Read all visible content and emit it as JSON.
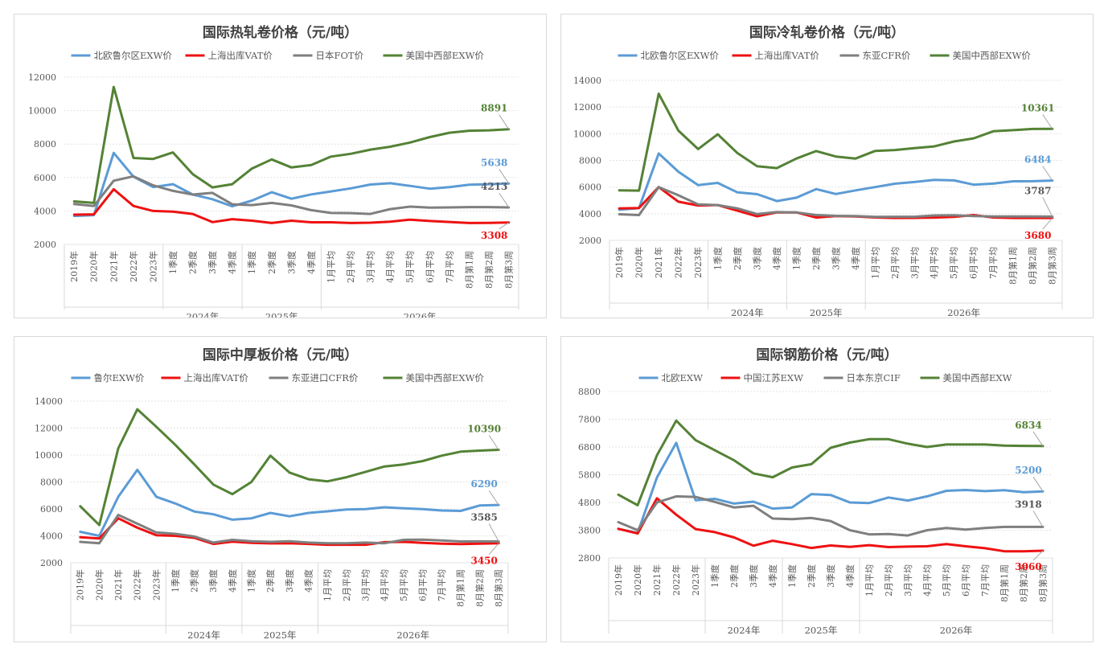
{
  "colors": {
    "blue": "#5b9bd5",
    "red": "#ee1111",
    "gray": "#7f7f7f",
    "green": "#548235"
  },
  "chart_data": [
    {
      "type": "line",
      "title": "国际热轧卷价格（元/吨）",
      "categories": [
        "2019年",
        "2020年",
        "2021年",
        "2022年",
        "2023年",
        "1季度",
        "2季度",
        "3季度",
        "4季度",
        "1季度",
        "2季度",
        "3季度",
        "4季度",
        "1月平均",
        "2月平均",
        "3月平均",
        "4月平均",
        "5月平均",
        "6月平均",
        "7月平均",
        "8月第1周",
        "8月第2周",
        "8月第3周"
      ],
      "groups": [
        {
          "label": "2024年",
          "start": 5,
          "end": 8
        },
        {
          "label": "2025年",
          "start": 9,
          "end": 12
        },
        {
          "label": "2026年",
          "start": 13,
          "end": 22
        }
      ],
      "ylim": [
        2000,
        12000
      ],
      "yticks": [
        2000,
        4000,
        6000,
        8000,
        10000,
        12000
      ],
      "legend_position": "top",
      "series": [
        {
          "name": "北欧鲁尔区EXW价",
          "color": "#5b9bd5",
          "values": [
            3700,
            3750,
            7470,
            6050,
            5430,
            5600,
            4980,
            4700,
            4280,
            4620,
            5120,
            4730,
            4990,
            5170,
            5350,
            5580,
            5660,
            5500,
            5330,
            5430,
            5570,
            5600,
            5638
          ],
          "end_label": "5638"
        },
        {
          "name": "上海出库VAT价",
          "color": "#ee1111",
          "values": [
            3780,
            3800,
            5300,
            4300,
            4000,
            3960,
            3820,
            3330,
            3510,
            3420,
            3280,
            3420,
            3320,
            3320,
            3280,
            3300,
            3360,
            3480,
            3400,
            3340,
            3280,
            3290,
            3308
          ],
          "end_label": "3308"
        },
        {
          "name": "日本FOT价",
          "color": "#7f7f7f",
          "values": [
            4420,
            4300,
            5810,
            6070,
            5530,
            5200,
            4980,
            5080,
            4400,
            4350,
            4480,
            4330,
            4050,
            3880,
            3870,
            3820,
            4110,
            4260,
            4200,
            4210,
            4230,
            4230,
            4213
          ],
          "end_label": "4213"
        },
        {
          "name": "美国中西部EXW价",
          "color": "#548235",
          "values": [
            4570,
            4480,
            11420,
            7170,
            7110,
            7500,
            6200,
            5410,
            5600,
            6540,
            7080,
            6600,
            6750,
            7250,
            7420,
            7670,
            7840,
            8090,
            8420,
            8680,
            8800,
            8820,
            8891
          ],
          "end_label": "8891"
        }
      ]
    },
    {
      "type": "line",
      "title": "国际冷轧卷价格（元/吨）",
      "categories": [
        "2019年",
        "2020年",
        "2021年",
        "2022年",
        "2023年",
        "1季度",
        "2季度",
        "3季度",
        "4季度",
        "1季度",
        "2季度",
        "3季度",
        "4季度",
        "1月平均",
        "2月平均",
        "3月平均",
        "4月平均",
        "5月平均",
        "6月平均",
        "7月平均",
        "8月第1周",
        "8月第2周",
        "8月第3周"
      ],
      "groups": [
        {
          "label": "2024年",
          "start": 5,
          "end": 8
        },
        {
          "label": "2025年",
          "start": 9,
          "end": 12
        },
        {
          "label": "2026年",
          "start": 13,
          "end": 22
        }
      ],
      "ylim": [
        2000,
        14000
      ],
      "yticks": [
        2000,
        4000,
        6000,
        8000,
        10000,
        12000,
        14000
      ],
      "legend_position": "top",
      "series": [
        {
          "name": "北欧鲁尔区EXW价",
          "color": "#5b9bd5",
          "values": [
            4300,
            4420,
            8520,
            7150,
            6150,
            6310,
            5600,
            5470,
            4950,
            5200,
            5850,
            5480,
            5750,
            6000,
            6250,
            6380,
            6540,
            6500,
            6180,
            6260,
            6430,
            6440,
            6484
          ],
          "end_label": "6484"
        },
        {
          "name": "上海出库VAT价",
          "color": "#ee1111",
          "values": [
            4400,
            4430,
            6000,
            4900,
            4620,
            4650,
            4230,
            3810,
            4100,
            4100,
            3710,
            3830,
            3800,
            3720,
            3680,
            3690,
            3710,
            3760,
            3900,
            3720,
            3680,
            3680,
            3680
          ],
          "end_label": "3680"
        },
        {
          "name": "东亚CFR价",
          "color": "#7f7f7f",
          "values": [
            3960,
            3900,
            6000,
            5380,
            4700,
            4650,
            4400,
            3970,
            4130,
            4100,
            3900,
            3840,
            3830,
            3760,
            3770,
            3770,
            3870,
            3880,
            3820,
            3800,
            3790,
            3790,
            3787
          ],
          "end_label": "3787"
        },
        {
          "name": "美国中西部EXW价",
          "color": "#548235",
          "values": [
            5750,
            5730,
            13000,
            10230,
            8850,
            9960,
            8550,
            7560,
            7420,
            8140,
            8700,
            8290,
            8140,
            8710,
            8780,
            8920,
            9050,
            9420,
            9650,
            10180,
            10270,
            10360,
            10361
          ],
          "end_label": "10361"
        }
      ]
    },
    {
      "type": "line",
      "title": "国际中厚板价格（元/吨）",
      "categories": [
        "2019年",
        "2020年",
        "2021年",
        "2022年",
        "2023年",
        "1季度",
        "2季度",
        "3季度",
        "4季度",
        "1季度",
        "2季度",
        "3季度",
        "4季度",
        "1月平均",
        "2月平均",
        "3月平均",
        "4月平均",
        "5月平均",
        "6月平均",
        "7月平均",
        "8月第1周",
        "8月第2周",
        "8月第3周"
      ],
      "groups": [
        {
          "label": "2024年",
          "start": 5,
          "end": 8
        },
        {
          "label": "2025年",
          "start": 9,
          "end": 12
        },
        {
          "label": "2026年",
          "start": 13,
          "end": 22
        }
      ],
      "ylim": [
        2000,
        14000
      ],
      "yticks": [
        2000,
        4000,
        6000,
        8000,
        10000,
        12000,
        14000
      ],
      "legend_position": "top",
      "series": [
        {
          "name": "鲁尔EXW价",
          "color": "#5b9bd5",
          "values": [
            4300,
            4000,
            6900,
            8900,
            6900,
            6400,
            5800,
            5600,
            5200,
            5300,
            5700,
            5450,
            5700,
            5820,
            5950,
            5980,
            6120,
            6050,
            5980,
            5880,
            5850,
            6250,
            6290
          ],
          "end_label": "6290"
        },
        {
          "name": "上海出库VAT价",
          "color": "#ee1111",
          "values": [
            3900,
            3800,
            5300,
            4600,
            4050,
            4000,
            3850,
            3400,
            3570,
            3480,
            3440,
            3450,
            3400,
            3340,
            3340,
            3340,
            3530,
            3550,
            3480,
            3420,
            3390,
            3420,
            3450
          ],
          "end_label": "3450"
        },
        {
          "name": "东亚进口CFR价",
          "color": "#7f7f7f",
          "values": [
            3550,
            3450,
            5550,
            4900,
            4250,
            4150,
            3950,
            3500,
            3700,
            3600,
            3550,
            3600,
            3500,
            3450,
            3450,
            3500,
            3450,
            3700,
            3720,
            3660,
            3580,
            3590,
            3585
          ],
          "end_label": "3585"
        },
        {
          "name": "美国中西部EXW价",
          "color": "#548235",
          "values": [
            6200,
            4800,
            10500,
            13400,
            12100,
            10750,
            9300,
            7800,
            7100,
            8000,
            9950,
            8700,
            8200,
            8050,
            8350,
            8750,
            9150,
            9300,
            9550,
            9950,
            10250,
            10330,
            10390
          ],
          "end_label": "10390"
        }
      ]
    },
    {
      "type": "line",
      "title": "国际钢筋价格（元/吨）",
      "categories": [
        "2019年",
        "2020年",
        "2021年",
        "2022年",
        "2023年",
        "1季度",
        "2季度",
        "3季度",
        "4季度",
        "1季度",
        "2季度",
        "3季度",
        "4季度",
        "1月平均",
        "2月平均",
        "3月平均",
        "4月平均",
        "5月平均",
        "6月平均",
        "7月平均",
        "8月第1周",
        "8月第2周",
        "8月第3周"
      ],
      "groups": [
        {
          "label": "2024年",
          "start": 5,
          "end": 8
        },
        {
          "label": "2025年",
          "start": 9,
          "end": 12
        },
        {
          "label": "2026年",
          "start": 13,
          "end": 22
        }
      ],
      "ylim": [
        2800,
        8800
      ],
      "yticks": [
        2800,
        3800,
        4800,
        5800,
        6800,
        7800,
        8800
      ],
      "legend_position": "top",
      "series": [
        {
          "name": "北欧EXW",
          "color": "#5b9bd5",
          "values": [
            3850,
            3700,
            5700,
            6950,
            4880,
            4930,
            4760,
            4830,
            4580,
            4620,
            5100,
            5070,
            4800,
            4780,
            4980,
            4870,
            5020,
            5220,
            5250,
            5210,
            5240,
            5170,
            5200
          ],
          "end_label": "5200"
        },
        {
          "name": "中国江苏EXW",
          "color": "#ee1111",
          "values": [
            3850,
            3680,
            4950,
            4360,
            3840,
            3730,
            3540,
            3240,
            3420,
            3300,
            3160,
            3250,
            3200,
            3260,
            3190,
            3210,
            3220,
            3300,
            3220,
            3150,
            3040,
            3040,
            3060
          ],
          "end_label": "3060"
        },
        {
          "name": "日本东京CIF",
          "color": "#7f7f7f",
          "values": [
            4090,
            3800,
            4800,
            5020,
            5000,
            4820,
            4620,
            4680,
            4220,
            4200,
            4240,
            4130,
            3800,
            3650,
            3660,
            3610,
            3800,
            3880,
            3820,
            3880,
            3920,
            3920,
            3918
          ],
          "end_label": "3918"
        },
        {
          "name": "美国中西部EXW",
          "color": "#548235",
          "values": [
            5080,
            4700,
            6500,
            7750,
            7050,
            6680,
            6320,
            5850,
            5710,
            6060,
            6180,
            6770,
            6960,
            7080,
            7080,
            6920,
            6800,
            6890,
            6890,
            6890,
            6850,
            6840,
            6834
          ],
          "end_label": "6834"
        }
      ]
    }
  ]
}
